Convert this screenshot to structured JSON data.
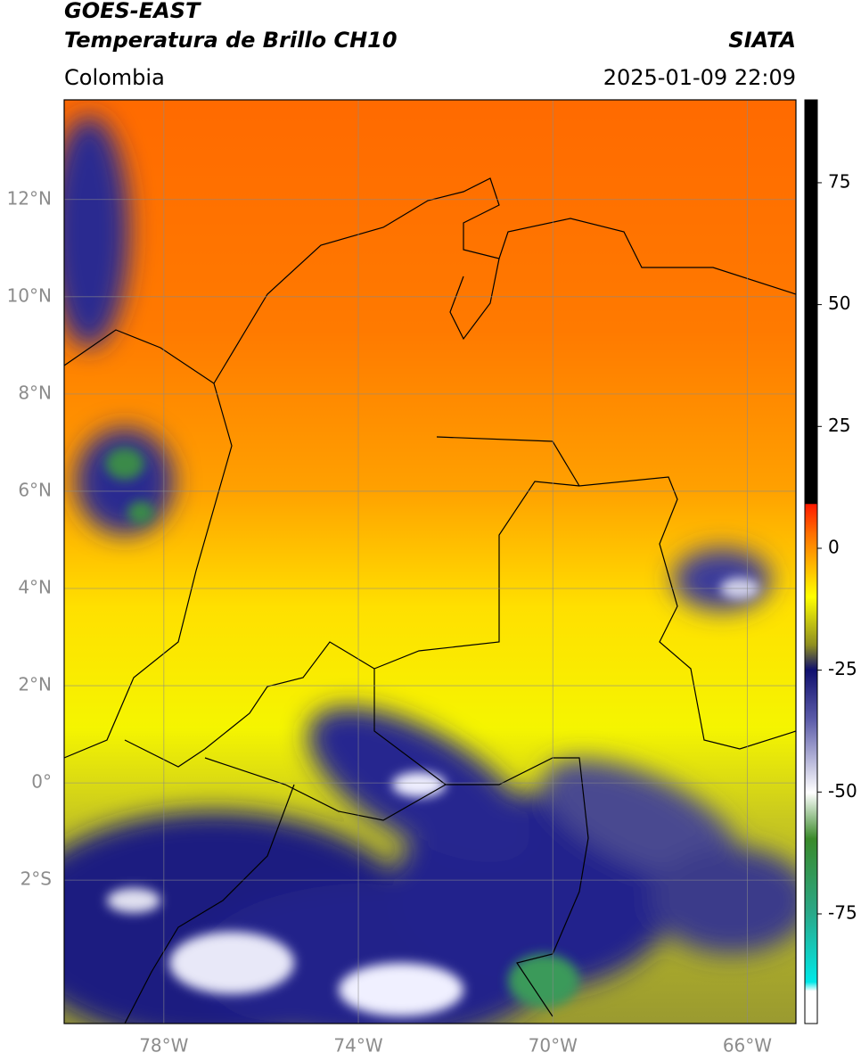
{
  "header": {
    "title_line1": "GOES-EAST",
    "title_line2": "Temperatura de Brillo CH10",
    "source": "SIATA",
    "region": "Colombia",
    "datetime": "2025-01-09 22:09"
  },
  "map": {
    "lonlim": [
      -80.05,
      -65
    ],
    "latlim": [
      -4.95,
      14.05
    ],
    "grid": true,
    "lat_ticks": [
      {
        "value": 12,
        "label": "12°N"
      },
      {
        "value": 10,
        "label": "10°N"
      },
      {
        "value": 8,
        "label": "8°N"
      },
      {
        "value": 6,
        "label": "6°N"
      },
      {
        "value": 4,
        "label": "4°N"
      },
      {
        "value": 2,
        "label": "2°N"
      },
      {
        "value": 0,
        "label": "0°"
      },
      {
        "value": -2,
        "label": "2°S"
      }
    ],
    "lon_ticks": [
      {
        "value": -78,
        "label": "78°W"
      },
      {
        "value": -74,
        "label": "74°W"
      },
      {
        "value": -70,
        "label": "70°W"
      },
      {
        "value": -66,
        "label": "66°W"
      }
    ]
  },
  "colorbar": {
    "lim": [
      -97.5,
      92
    ],
    "ticks": [
      75,
      50,
      25,
      0,
      -25,
      -50,
      -75
    ]
  }
}
